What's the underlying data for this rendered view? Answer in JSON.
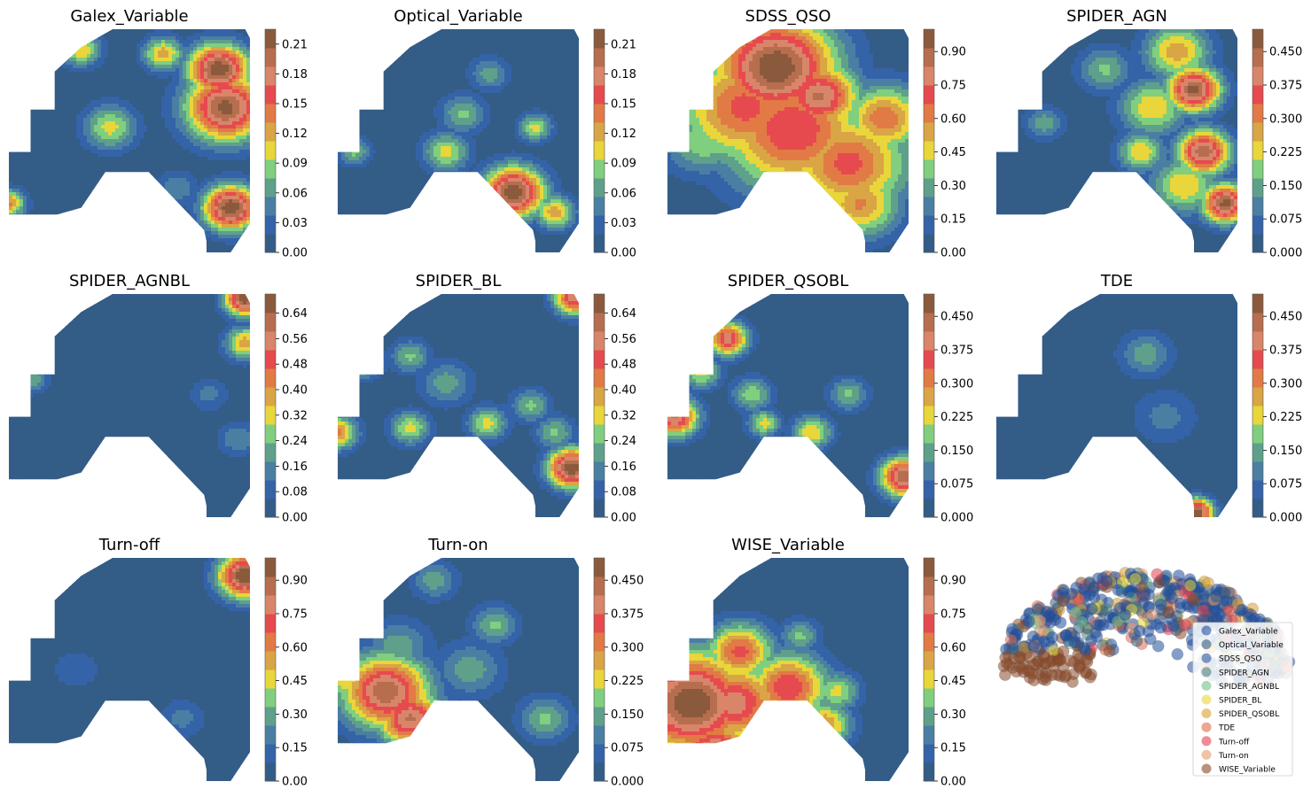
{
  "chart_data": {
    "type": "contour-grid",
    "colorscale": [
      "#335c87",
      "#3463a8",
      "#4a7fa3",
      "#5fa08b",
      "#7fcf7f",
      "#e8d63a",
      "#d9a545",
      "#e27a45",
      "#e64a4f",
      "#d9856a",
      "#b66e4f",
      "#8b5a3c"
    ],
    "panels": [
      {
        "title": "Galex_Variable",
        "ticks": [
          "0.00",
          "0.03",
          "0.06",
          "0.09",
          "0.12",
          "0.15",
          "0.18",
          "0.21"
        ],
        "vmax": 0.225,
        "hotspots": [
          [
            0.87,
            0.18,
            0.09,
            1.0
          ],
          [
            0.9,
            0.35,
            0.12,
            0.95
          ],
          [
            0.64,
            0.11,
            0.06,
            0.55
          ],
          [
            0.42,
            0.44,
            0.08,
            0.45
          ],
          [
            0.92,
            0.8,
            0.08,
            1.0
          ],
          [
            0.3,
            0.09,
            0.06,
            0.5
          ],
          [
            0.0,
            0.78,
            0.05,
            0.6
          ],
          [
            0.7,
            0.71,
            0.06,
            0.25
          ]
        ]
      },
      {
        "title": "Optical_Variable",
        "ticks": [
          "0.00",
          "0.03",
          "0.06",
          "0.09",
          "0.12",
          "0.15",
          "0.18",
          "0.21"
        ],
        "vmax": 0.225,
        "hotspots": [
          [
            0.73,
            0.73,
            0.09,
            1.0
          ],
          [
            0.9,
            0.82,
            0.06,
            0.55
          ],
          [
            0.45,
            0.55,
            0.07,
            0.45
          ],
          [
            0.52,
            0.38,
            0.07,
            0.35
          ],
          [
            0.82,
            0.44,
            0.05,
            0.45
          ],
          [
            0.07,
            0.55,
            0.05,
            0.35
          ],
          [
            0.63,
            0.2,
            0.06,
            0.3
          ]
        ]
      },
      {
        "title": "SDSS_QSO",
        "ticks": [
          "0.00",
          "0.15",
          "0.30",
          "0.45",
          "0.60",
          "0.75",
          "0.90"
        ],
        "vmax": 1.0,
        "hotspots": [
          [
            0.45,
            0.17,
            0.18,
            1.0
          ],
          [
            0.63,
            0.3,
            0.12,
            0.85
          ],
          [
            0.52,
            0.45,
            0.22,
            0.75
          ],
          [
            0.32,
            0.35,
            0.2,
            0.7
          ],
          [
            0.75,
            0.6,
            0.18,
            0.7
          ],
          [
            0.8,
            0.78,
            0.12,
            0.6
          ],
          [
            0.15,
            0.5,
            0.12,
            0.4
          ],
          [
            0.9,
            0.4,
            0.12,
            0.65
          ]
        ]
      },
      {
        "title": "SPIDER_AGN",
        "ticks": [
          "0.000",
          "0.075",
          "0.150",
          "0.225",
          "0.300",
          "0.375",
          "0.450"
        ],
        "vmax": 0.5,
        "hotspots": [
          [
            0.82,
            0.27,
            0.08,
            0.95
          ],
          [
            0.86,
            0.55,
            0.08,
            0.9
          ],
          [
            0.95,
            0.78,
            0.07,
            0.95
          ],
          [
            0.65,
            0.35,
            0.1,
            0.5
          ],
          [
            0.75,
            0.1,
            0.1,
            0.55
          ],
          [
            0.6,
            0.55,
            0.07,
            0.5
          ],
          [
            0.45,
            0.18,
            0.08,
            0.35
          ],
          [
            0.2,
            0.42,
            0.06,
            0.3
          ],
          [
            0.78,
            0.7,
            0.1,
            0.5
          ]
        ]
      },
      {
        "title": "SPIDER_AGNBL",
        "ticks": [
          "0.00",
          "0.08",
          "0.16",
          "0.24",
          "0.32",
          "0.40",
          "0.48",
          "0.56",
          "0.64"
        ],
        "vmax": 0.7,
        "hotspots": [
          [
            0.98,
            0.02,
            0.06,
            1.0
          ],
          [
            0.98,
            0.22,
            0.06,
            0.55
          ],
          [
            0.1,
            0.38,
            0.05,
            0.3
          ],
          [
            0.83,
            0.45,
            0.06,
            0.2
          ],
          [
            0.95,
            0.65,
            0.06,
            0.25
          ]
        ]
      },
      {
        "title": "SPIDER_BL",
        "ticks": [
          "0.00",
          "0.08",
          "0.16",
          "0.24",
          "0.32",
          "0.40",
          "0.48",
          "0.56",
          "0.64"
        ],
        "vmax": 0.7,
        "hotspots": [
          [
            0.97,
            0.78,
            0.07,
            1.0
          ],
          [
            0.98,
            0.02,
            0.06,
            0.8
          ],
          [
            0.0,
            0.62,
            0.06,
            0.6
          ],
          [
            0.1,
            0.3,
            0.06,
            0.45
          ],
          [
            0.3,
            0.6,
            0.06,
            0.45
          ],
          [
            0.62,
            0.58,
            0.06,
            0.45
          ],
          [
            0.8,
            0.5,
            0.06,
            0.35
          ],
          [
            0.45,
            0.4,
            0.08,
            0.3
          ],
          [
            0.9,
            0.62,
            0.06,
            0.35
          ],
          [
            0.3,
            0.28,
            0.06,
            0.35
          ]
        ]
      },
      {
        "title": "SPIDER_QSOBL",
        "ticks": [
          "0.000",
          "0.075",
          "0.150",
          "0.225",
          "0.300",
          "0.375",
          "0.450"
        ],
        "vmax": 0.5,
        "hotspots": [
          [
            0.98,
            0.82,
            0.07,
            0.9
          ],
          [
            0.25,
            0.2,
            0.06,
            0.8
          ],
          [
            0.03,
            0.55,
            0.07,
            0.85
          ],
          [
            0.6,
            0.62,
            0.06,
            0.5
          ],
          [
            0.35,
            0.45,
            0.06,
            0.4
          ],
          [
            0.4,
            0.58,
            0.05,
            0.45
          ],
          [
            0.75,
            0.45,
            0.06,
            0.35
          ],
          [
            0.14,
            0.35,
            0.06,
            0.45
          ]
        ]
      },
      {
        "title": "TDE",
        "ticks": [
          "0.000",
          "0.075",
          "0.150",
          "0.225",
          "0.300",
          "0.375",
          "0.450"
        ],
        "vmax": 0.5,
        "hotspots": [
          [
            0.83,
            0.98,
            0.05,
            1.0
          ],
          [
            0.62,
            0.27,
            0.08,
            0.3
          ],
          [
            0.7,
            0.55,
            0.1,
            0.2
          ]
        ]
      },
      {
        "title": "Turn-off",
        "ticks": [
          "0.00",
          "0.15",
          "0.30",
          "0.45",
          "0.60",
          "0.75",
          "0.90"
        ],
        "vmax": 1.0,
        "hotspots": [
          [
            0.98,
            0.08,
            0.08,
            1.0
          ],
          [
            0.72,
            0.72,
            0.07,
            0.2
          ],
          [
            0.28,
            0.5,
            0.1,
            0.12
          ]
        ]
      },
      {
        "title": "Turn-on",
        "ticks": [
          "0.000",
          "0.075",
          "0.150",
          "0.225",
          "0.300",
          "0.375",
          "0.450"
        ],
        "vmax": 0.5,
        "hotspots": [
          [
            0.2,
            0.6,
            0.13,
            0.9
          ],
          [
            0.3,
            0.72,
            0.1,
            0.85
          ],
          [
            0.65,
            0.3,
            0.07,
            0.35
          ],
          [
            0.25,
            0.4,
            0.1,
            0.3
          ],
          [
            0.55,
            0.5,
            0.1,
            0.3
          ],
          [
            0.4,
            0.1,
            0.07,
            0.3
          ],
          [
            0.86,
            0.72,
            0.08,
            0.35
          ],
          [
            0.05,
            0.55,
            0.08,
            0.5
          ]
        ]
      },
      {
        "title": "WISE_Variable",
        "ticks": [
          "0.00",
          "0.15",
          "0.30",
          "0.45",
          "0.60",
          "0.75",
          "0.90"
        ],
        "vmax": 1.0,
        "hotspots": [
          [
            0.1,
            0.65,
            0.18,
            1.0
          ],
          [
            0.28,
            0.65,
            0.14,
            0.8
          ],
          [
            0.3,
            0.42,
            0.1,
            0.7
          ],
          [
            0.5,
            0.58,
            0.12,
            0.75
          ],
          [
            0.65,
            0.75,
            0.08,
            0.6
          ],
          [
            0.7,
            0.6,
            0.07,
            0.45
          ],
          [
            0.2,
            0.88,
            0.12,
            0.9
          ],
          [
            0.55,
            0.35,
            0.06,
            0.35
          ]
        ]
      }
    ],
    "legend": {
      "entries": [
        "Galex_Variable",
        "Optical_Variable",
        "SDSS_QSO",
        "SPIDER_AGN",
        "SPIDER_AGNBL",
        "SPIDER_BL",
        "SPIDER_QSOBL",
        "TDE",
        "Turn-off",
        "Turn-on",
        "WISE_Variable"
      ],
      "colors": [
        "#1f4f9e",
        "#355c7d",
        "#2d57a6",
        "#4f7f7a",
        "#73c08a",
        "#e8d63a",
        "#d9a030",
        "#e06a4a",
        "#e6404f",
        "#e69a6a",
        "#8a4a2a"
      ],
      "placement": "right"
    }
  }
}
